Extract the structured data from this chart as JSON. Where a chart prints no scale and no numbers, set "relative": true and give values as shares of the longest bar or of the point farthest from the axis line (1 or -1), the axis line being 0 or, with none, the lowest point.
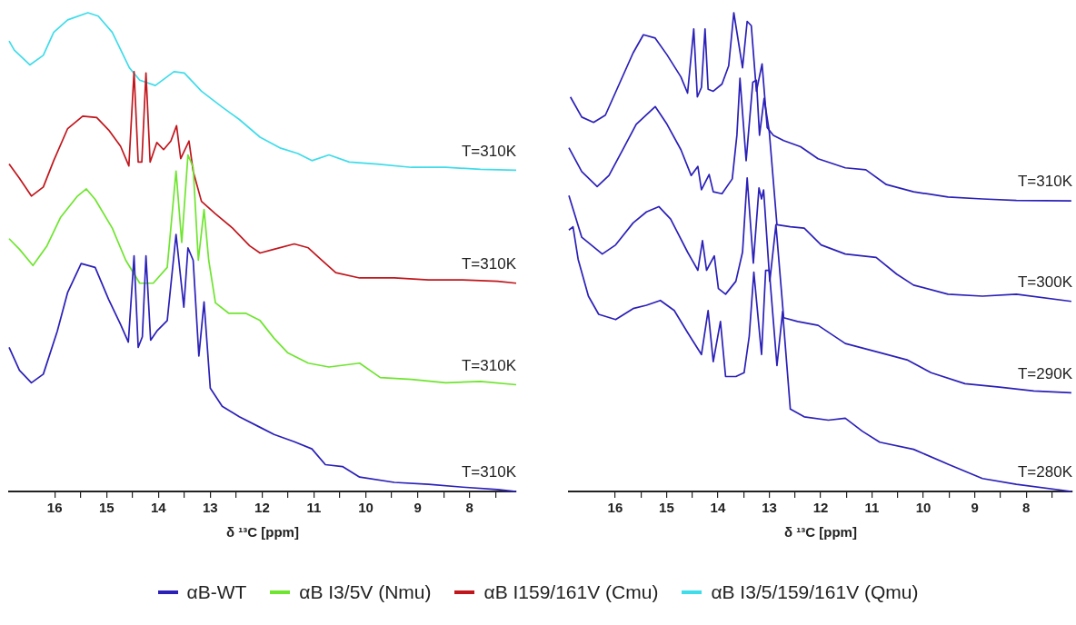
{
  "chart_data": [
    {
      "type": "line",
      "relative": true,
      "xlabel": "δ ¹³C [ppm]",
      "legend": "bottom",
      "xlim": [
        16.88,
        7.1
      ],
      "xticks": [
        16,
        {
          "value": 15.5,
          "label": null
        },
        15,
        {
          "value": 14.5,
          "label": null
        },
        14,
        {
          "value": 13.5,
          "label": null
        },
        13,
        {
          "value": 12.5,
          "label": null
        },
        12,
        {
          "value": 11.5,
          "label": null
        },
        11,
        {
          "value": 10.5,
          "label": null
        },
        10,
        {
          "value": 9.5,
          "label": null
        },
        9,
        {
          "value": 8.5,
          "label": null
        },
        8,
        {
          "value": 7.5,
          "label": null
        }
      ],
      "series": [
        {
          "name": "αB-WT",
          "color": "#2b20b8",
          "x": [
            16.88,
            16.68,
            16.45,
            16.22,
            15.95,
            15.75,
            15.49,
            15.22,
            14.96,
            14.73,
            14.58,
            14.47,
            14.39,
            14.31,
            14.24,
            14.15,
            14.03,
            13.83,
            13.66,
            13.51,
            13.43,
            13.33,
            13.22,
            13.12,
            13.0,
            12.77,
            12.44,
            12.04,
            11.77,
            11.38,
            11.04,
            10.78,
            10.45,
            10.12,
            9.45,
            8.79,
            8.13,
            7.46,
            7.1
          ],
          "values": [
            0.301,
            0.253,
            0.227,
            0.245,
            0.335,
            0.416,
            0.476,
            0.468,
            0.401,
            0.349,
            0.312,
            0.492,
            0.301,
            0.323,
            0.492,
            0.316,
            0.335,
            0.357,
            0.537,
            0.385,
            0.509,
            0.483,
            0.283,
            0.396,
            0.216,
            0.178,
            0.156,
            0.134,
            0.119,
            0.104,
            0.089,
            0.056,
            0.052,
            0.03,
            0.019,
            0.015,
            0.009,
            0.004,
            0
          ]
        },
        {
          "name": "αB I3/5V (Nmu)",
          "color": "#6ee52e",
          "x": [
            16.88,
            16.68,
            16.42,
            16.15,
            15.89,
            15.56,
            15.39,
            15.22,
            14.89,
            14.63,
            14.36,
            14.1,
            13.83,
            13.66,
            13.55,
            13.43,
            13.33,
            13.23,
            13.12,
            13.03,
            12.9,
            12.64,
            12.31,
            12.04,
            11.77,
            11.51,
            11.11,
            10.71,
            10.12,
            9.72,
            9.12,
            8.46,
            7.79,
            7.1
          ],
          "values": [
            0.528,
            0.506,
            0.472,
            0.513,
            0.572,
            0.617,
            0.632,
            0.61,
            0.55,
            0.483,
            0.435,
            0.435,
            0.468,
            0.669,
            0.52,
            0.703,
            0.677,
            0.483,
            0.589,
            0.483,
            0.394,
            0.372,
            0.372,
            0.357,
            0.32,
            0.29,
            0.268,
            0.26,
            0.268,
            0.238,
            0.234,
            0.227,
            0.23,
            0.223
          ]
        },
        {
          "name": "αB I159/161V (Cmu)",
          "color": "#c0161c",
          "x": [
            16.88,
            16.68,
            16.45,
            16.22,
            16.02,
            15.75,
            15.46,
            15.19,
            14.96,
            14.73,
            14.57,
            14.47,
            14.39,
            14.32,
            14.24,
            14.16,
            14.03,
            13.9,
            13.76,
            13.65,
            13.57,
            13.41,
            13.33,
            13.17,
            12.9,
            12.57,
            12.24,
            12.04,
            11.77,
            11.38,
            11.11,
            10.85,
            10.58,
            10.12,
            9.45,
            8.79,
            8.13,
            7.46,
            7.1
          ],
          "values": [
            0.684,
            0.654,
            0.617,
            0.636,
            0.691,
            0.758,
            0.784,
            0.781,
            0.755,
            0.721,
            0.68,
            0.877,
            0.688,
            0.688,
            0.874,
            0.688,
            0.729,
            0.714,
            0.732,
            0.764,
            0.695,
            0.732,
            0.669,
            0.606,
            0.58,
            0.55,
            0.513,
            0.498,
            0.506,
            0.517,
            0.509,
            0.483,
            0.457,
            0.446,
            0.446,
            0.442,
            0.442,
            0.439,
            0.435
          ]
        },
        {
          "name": "αB I3/5/159/161V (Qmu)",
          "color": "#3fdcea",
          "x": [
            16.88,
            16.78,
            16.48,
            16.22,
            16.02,
            15.75,
            15.36,
            15.16,
            14.89,
            14.56,
            14.36,
            14.06,
            13.7,
            13.5,
            13.17,
            12.77,
            12.44,
            12.04,
            11.64,
            11.31,
            11.04,
            10.71,
            10.32,
            9.78,
            9.12,
            8.46,
            7.79,
            7.1
          ],
          "values": [
            0.941,
            0.922,
            0.891,
            0.911,
            0.959,
            0.985,
            1.0,
            0.993,
            0.959,
            0.885,
            0.859,
            0.848,
            0.877,
            0.874,
            0.836,
            0.803,
            0.777,
            0.74,
            0.717,
            0.706,
            0.691,
            0.703,
            0.688,
            0.684,
            0.677,
            0.677,
            0.673,
            0.671
          ]
        }
      ],
      "annotations": [
        "T=310K",
        "T=310K",
        "T=310K",
        "T=310K"
      ]
    },
    {
      "type": "line",
      "relative": true,
      "xlabel": "δ ¹³C [ppm]",
      "xlim": [
        16.9,
        7.1
      ],
      "xticks": [
        16,
        {
          "value": 15.5,
          "label": null
        },
        15,
        {
          "value": 14.5,
          "label": null
        },
        14,
        {
          "value": 13.5,
          "label": null
        },
        13,
        {
          "value": 12.5,
          "label": null
        },
        12,
        {
          "value": 11.5,
          "label": null
        },
        11,
        {
          "value": 10.5,
          "label": null
        },
        10,
        {
          "value": 9.5,
          "label": null
        },
        9,
        {
          "value": 8.5,
          "label": null
        },
        8,
        {
          "value": 7.5,
          "label": null
        }
      ],
      "series": [
        {
          "name": "T=310K",
          "color": "#2b20b8",
          "x": [
            16.87,
            16.65,
            16.42,
            16.19,
            15.92,
            15.65,
            15.45,
            15.22,
            14.99,
            14.72,
            14.59,
            14.47,
            14.4,
            14.32,
            14.25,
            14.19,
            14.09,
            13.92,
            13.79,
            13.69,
            13.52,
            13.43,
            13.35,
            13.25,
            13.14,
            13.04,
            12.92,
            12.72,
            12.39,
            12.05,
            11.52,
            11.12,
            10.72,
            10.19,
            9.52,
            8.85,
            8.19,
            7.12
          ],
          "values": [
            0.824,
            0.782,
            0.771,
            0.786,
            0.851,
            0.916,
            0.954,
            0.947,
            0.912,
            0.866,
            0.832,
            0.966,
            0.824,
            0.844,
            0.966,
            0.84,
            0.836,
            0.851,
            0.889,
            1.0,
            0.885,
            0.982,
            0.973,
            0.836,
            0.893,
            0.76,
            0.744,
            0.733,
            0.72,
            0.695,
            0.676,
            0.672,
            0.641,
            0.626,
            0.615,
            0.611,
            0.608,
            0.607
          ]
        },
        {
          "name": "T=300K",
          "color": "#2b20b8",
          "x": [
            16.9,
            16.65,
            16.35,
            16.12,
            15.85,
            15.59,
            15.22,
            14.99,
            14.72,
            14.52,
            14.39,
            14.32,
            14.17,
            14.09,
            13.92,
            13.72,
            13.63,
            13.57,
            13.45,
            13.32,
            13.25,
            13.19,
            13.1,
            13.0,
            12.85,
            12.59,
            12.32,
            11.99,
            11.52,
            10.92,
            10.52,
            10.19,
            9.52,
            8.85,
            8.19,
            7.12
          ],
          "values": [
            0.718,
            0.668,
            0.637,
            0.66,
            0.714,
            0.767,
            0.804,
            0.767,
            0.714,
            0.66,
            0.679,
            0.63,
            0.662,
            0.626,
            0.622,
            0.653,
            0.744,
            0.863,
            0.691,
            0.855,
            0.859,
            0.744,
            0.821,
            0.752,
            0.557,
            0.553,
            0.55,
            0.515,
            0.496,
            0.489,
            0.454,
            0.431,
            0.412,
            0.408,
            0.412,
            0.397
          ]
        },
        {
          "name": "T=290K",
          "color": "#2b20b8",
          "x": [
            16.9,
            16.65,
            16.25,
            15.99,
            15.65,
            15.39,
            15.15,
            14.92,
            14.59,
            14.39,
            14.3,
            14.22,
            14.07,
            13.99,
            13.85,
            13.65,
            13.52,
            13.43,
            13.31,
            13.2,
            13.15,
            13.11,
            12.99,
            12.87,
            12.72,
            12.45,
            12.05,
            11.52,
            10.85,
            10.32,
            9.85,
            9.19,
            8.52,
            7.85,
            7.12
          ],
          "values": [
            0.618,
            0.531,
            0.496,
            0.515,
            0.561,
            0.584,
            0.595,
            0.569,
            0.5,
            0.462,
            0.524,
            0.462,
            0.492,
            0.424,
            0.412,
            0.439,
            0.5,
            0.655,
            0.477,
            0.634,
            0.611,
            0.63,
            0.439,
            0.557,
            0.363,
            0.355,
            0.347,
            0.309,
            0.29,
            0.275,
            0.248,
            0.225,
            0.218,
            0.21,
            0.206
          ]
        },
        {
          "name": "T=280K",
          "color": "#2b20b8",
          "x": [
            16.9,
            16.82,
            16.72,
            16.52,
            16.32,
            15.99,
            15.65,
            15.39,
            15.12,
            14.85,
            14.59,
            14.32,
            14.19,
            14.09,
            13.95,
            13.85,
            13.65,
            13.49,
            13.39,
            13.3,
            13.15,
            13.07,
            13.0,
            12.85,
            12.74,
            12.59,
            12.32,
            11.85,
            11.52,
            11.19,
            10.85,
            10.19,
            9.52,
            8.85,
            8.19,
            7.12
          ],
          "values": [
            0.546,
            0.553,
            0.485,
            0.408,
            0.37,
            0.359,
            0.382,
            0.389,
            0.399,
            0.378,
            0.332,
            0.286,
            0.378,
            0.271,
            0.355,
            0.24,
            0.24,
            0.248,
            0.324,
            0.458,
            0.286,
            0.462,
            0.462,
            0.263,
            0.376,
            0.172,
            0.156,
            0.149,
            0.153,
            0.126,
            0.103,
            0.088,
            0.057,
            0.027,
            0.015,
            0
          ]
        }
      ]
    }
  ]
}
